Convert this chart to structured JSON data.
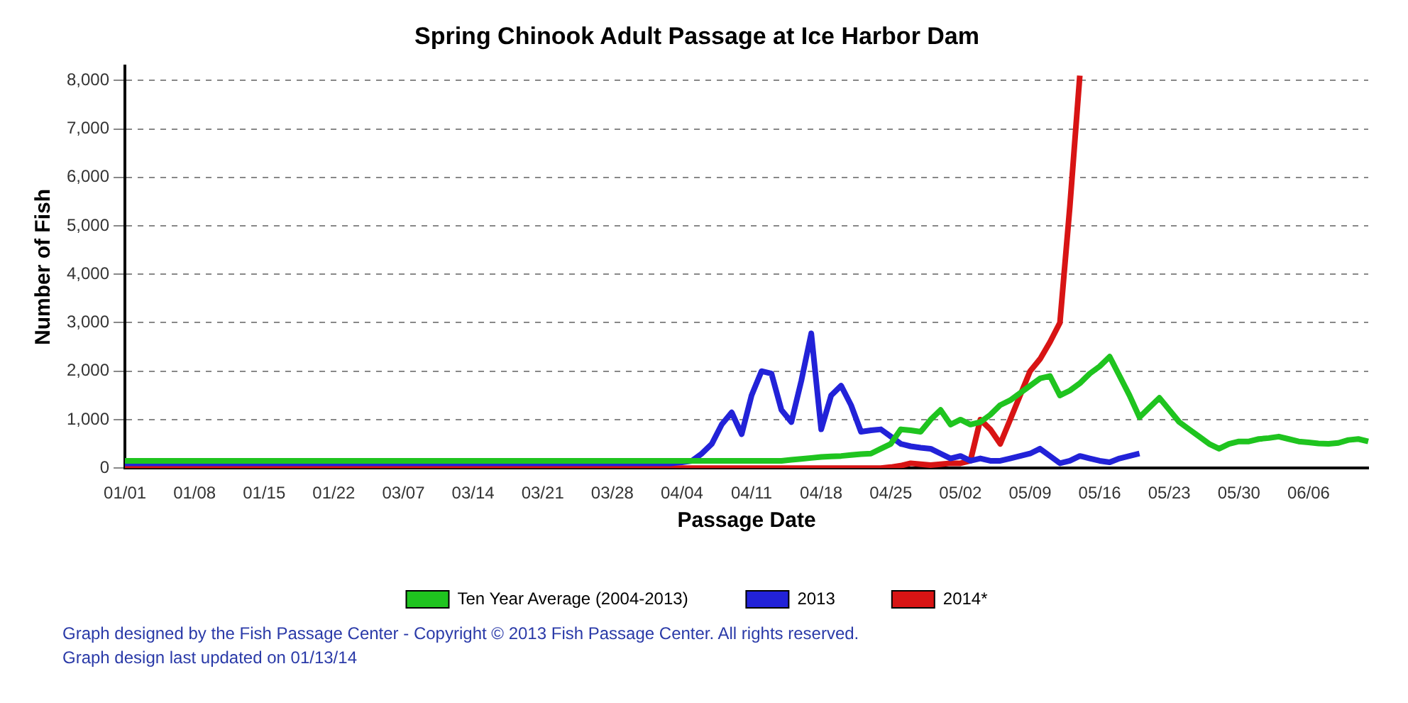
{
  "chart_data": {
    "type": "line",
    "title": "Spring Chinook Adult Passage at Ice Harbor Dam",
    "xlabel": "Passage Date",
    "ylabel": "Number of Fish",
    "categories": [
      "01/01",
      null,
      null,
      null,
      null,
      null,
      null,
      "01/08",
      null,
      null,
      null,
      null,
      null,
      null,
      "01/15",
      null,
      null,
      null,
      null,
      null,
      null,
      "01/22",
      null,
      null,
      null,
      null,
      null,
      null,
      "03/07",
      null,
      null,
      null,
      null,
      null,
      null,
      "03/14",
      null,
      null,
      null,
      null,
      null,
      null,
      "03/21",
      null,
      null,
      null,
      null,
      null,
      null,
      "03/28",
      null,
      null,
      null,
      null,
      null,
      null,
      "04/04",
      null,
      null,
      null,
      null,
      null,
      null,
      "04/11",
      null,
      null,
      null,
      null,
      null,
      null,
      "04/18",
      null,
      null,
      null,
      null,
      null,
      null,
      "04/25",
      null,
      null,
      null,
      null,
      null,
      null,
      "05/02",
      null,
      null,
      null,
      null,
      null,
      null,
      "05/09",
      null,
      null,
      null,
      null,
      null,
      null,
      "05/16",
      null,
      null,
      null,
      null,
      null,
      null,
      "05/23",
      null,
      null,
      null,
      null,
      null,
      null,
      "05/30",
      null,
      null,
      null,
      null,
      null,
      null,
      "06/06",
      null,
      null,
      null,
      null,
      null,
      null
    ],
    "series": [
      {
        "name": "Ten Year Average (2004-2013)",
        "color": "#1fc41f",
        "values": [
          150,
          150,
          150,
          150,
          150,
          150,
          150,
          150,
          150,
          150,
          150,
          150,
          150,
          150,
          150,
          150,
          150,
          150,
          150,
          150,
          150,
          150,
          150,
          150,
          150,
          150,
          150,
          150,
          150,
          150,
          150,
          150,
          150,
          150,
          150,
          150,
          150,
          150,
          150,
          150,
          150,
          150,
          150,
          150,
          150,
          150,
          150,
          150,
          150,
          150,
          150,
          150,
          150,
          150,
          150,
          150,
          150,
          150,
          150,
          150,
          150,
          150,
          150,
          150,
          150,
          150,
          150,
          170,
          190,
          210,
          230,
          240,
          250,
          270,
          290,
          300,
          400,
          500,
          800,
          780,
          750,
          1000,
          1200,
          900,
          1000,
          900,
          950,
          1100,
          1300,
          1400,
          1550,
          1700,
          1850,
          1900,
          1500,
          1600,
          1750,
          1950,
          2100,
          2300,
          1900,
          1500,
          1050,
          1250,
          1450,
          1200,
          950,
          800,
          650,
          500,
          400,
          500,
          550,
          550,
          600,
          620,
          650,
          600,
          550,
          530,
          510,
          500,
          520,
          580,
          600,
          550
        ]
      },
      {
        "name": "2013",
        "color": "#2222d8",
        "values": [
          100,
          100,
          100,
          100,
          100,
          100,
          100,
          100,
          100,
          100,
          100,
          100,
          100,
          100,
          100,
          100,
          100,
          100,
          100,
          100,
          100,
          100,
          100,
          100,
          100,
          100,
          100,
          100,
          100,
          100,
          100,
          100,
          100,
          100,
          100,
          100,
          100,
          100,
          100,
          100,
          100,
          100,
          100,
          100,
          100,
          100,
          100,
          100,
          100,
          100,
          100,
          100,
          100,
          100,
          100,
          100,
          120,
          150,
          300,
          500,
          900,
          1150,
          700,
          1500,
          2000,
          1950,
          1200,
          950,
          1800,
          2780,
          800,
          1500,
          1700,
          1300,
          750,
          780,
          800,
          650,
          500,
          450,
          420,
          400,
          300,
          200,
          250,
          150,
          200,
          150,
          150,
          200,
          250,
          300,
          400,
          250,
          100,
          150,
          250,
          200,
          150,
          120,
          200,
          250,
          300,
          null,
          null,
          null,
          null,
          null,
          null,
          null,
          null,
          null,
          null,
          null,
          null,
          null,
          null,
          null,
          null,
          null,
          null,
          null,
          null,
          null,
          null,
          null
        ]
      },
      {
        "name": "2014*",
        "color": "#d81414",
        "values": [
          0,
          0,
          0,
          0,
          0,
          0,
          0,
          0,
          0,
          0,
          0,
          0,
          0,
          0,
          0,
          0,
          0,
          0,
          0,
          0,
          0,
          0,
          0,
          0,
          0,
          0,
          0,
          0,
          0,
          0,
          0,
          0,
          0,
          0,
          0,
          0,
          0,
          0,
          0,
          0,
          0,
          0,
          0,
          0,
          0,
          0,
          0,
          0,
          0,
          0,
          0,
          0,
          0,
          0,
          0,
          0,
          0,
          0,
          0,
          0,
          0,
          0,
          0,
          0,
          0,
          0,
          0,
          0,
          0,
          0,
          0,
          0,
          0,
          0,
          0,
          0,
          0,
          20,
          50,
          100,
          80,
          60,
          80,
          100,
          100,
          150,
          1000,
          800,
          500,
          1000,
          1500,
          2000,
          2250,
          2600,
          3000,
          5400,
          8100,
          null,
          null,
          null,
          null,
          null,
          null,
          null,
          null,
          null,
          null,
          null,
          null,
          null,
          null,
          null,
          null,
          null,
          null,
          null,
          null,
          null,
          null,
          null,
          null,
          null,
          null,
          null,
          null,
          null
        ]
      }
    ],
    "ylim": [
      0,
      8300
    ],
    "yticks": [
      0,
      {
        "value": 1000,
        "label": "1,000"
      },
      {
        "value": 2000,
        "label": "2,000"
      },
      {
        "value": 3000,
        "label": "3,000"
      },
      {
        "value": 4000,
        "label": "4,000"
      },
      {
        "value": 5000,
        "label": "5,000"
      },
      {
        "value": 6000,
        "label": "6,000"
      },
      {
        "value": 7000,
        "label": "7,000"
      },
      {
        "value": 8000,
        "label": "8,000"
      }
    ],
    "grid": "y",
    "legend": "bottom",
    "marker": "none",
    "line_style": "solid",
    "annotations": [
      "Graph designed by the Fish Passage Center - Copyright © 2013 Fish Passage Center. All rights reserved.",
      "Graph design last updated on 01/13/14"
    ]
  }
}
